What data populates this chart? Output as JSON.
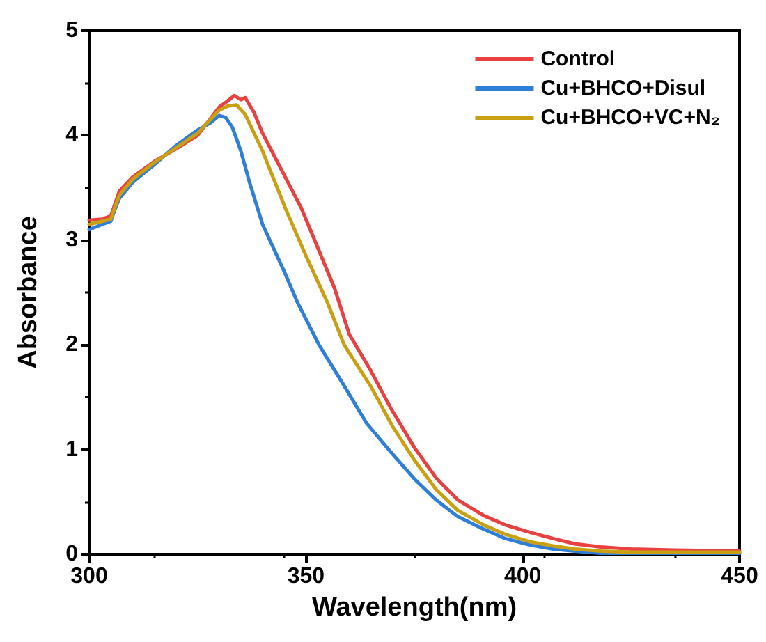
{
  "chart_data": {
    "type": "line",
    "xlabel": "Wavelength(nm)",
    "ylabel": "Absorbance",
    "xlim": [
      300,
      450
    ],
    "xticks": [
      300,
      350,
      400,
      450
    ],
    "ylim": [
      0,
      5
    ],
    "yticks": [
      0,
      1,
      2,
      3,
      4,
      5
    ],
    "grid": false,
    "legend": "top right",
    "marker": "none",
    "line_style": "solid",
    "series": [
      {
        "name": "Control",
        "color": "#e8413f",
        "x": [
          300,
          303,
          305,
          306,
          307,
          310,
          315,
          320,
          325,
          330,
          332,
          333.5,
          335,
          336,
          338,
          340,
          345,
          349,
          352,
          356.6,
          360,
          365,
          369.5,
          375,
          380,
          385,
          391,
          396,
          401.6,
          407,
          412,
          418,
          425,
          435,
          450
        ],
        "values": [
          3.19,
          3.2,
          3.23,
          3.35,
          3.47,
          3.6,
          3.75,
          3.87,
          4.0,
          4.27,
          4.33,
          4.38,
          4.34,
          4.36,
          4.22,
          4.02,
          3.62,
          3.3,
          3.0,
          2.54,
          2.1,
          1.75,
          1.4,
          1.02,
          0.73,
          0.52,
          0.37,
          0.28,
          0.21,
          0.15,
          0.1,
          0.07,
          0.05,
          0.04,
          0.03
        ]
      },
      {
        "name": "Cu+BHCO+Disul",
        "color": "#2f7ed8",
        "x": [
          300,
          303,
          305,
          306,
          307,
          310,
          315,
          320,
          325,
          328,
          330,
          331.5,
          333,
          335,
          337,
          340,
          345,
          348,
          353,
          358.8,
          364,
          369.5,
          375,
          380,
          385,
          391,
          396,
          401.6,
          407,
          412,
          418,
          425,
          435,
          450
        ],
        "values": [
          3.1,
          3.15,
          3.18,
          3.3,
          3.4,
          3.55,
          3.72,
          3.9,
          4.05,
          4.12,
          4.19,
          4.17,
          4.08,
          3.85,
          3.55,
          3.15,
          2.7,
          2.41,
          2.0,
          1.61,
          1.25,
          0.98,
          0.72,
          0.52,
          0.36,
          0.24,
          0.15,
          0.09,
          0.05,
          0.03,
          0.01,
          0.01,
          0.01,
          0.01
        ]
      },
      {
        "name": "Cu+BHCO+VC+N₂",
        "color": "#c9a012",
        "x": [
          300,
          303,
          305,
          306,
          307,
          310,
          315,
          320,
          325,
          330,
          332,
          334,
          336,
          340,
          345.3,
          350,
          355,
          358.8,
          365,
          370,
          375,
          380,
          385,
          391,
          396,
          401.6,
          407,
          412,
          418,
          425,
          435,
          450
        ],
        "values": [
          3.15,
          3.18,
          3.2,
          3.32,
          3.43,
          3.58,
          3.74,
          3.88,
          4.02,
          4.24,
          4.28,
          4.29,
          4.2,
          3.85,
          3.3,
          2.85,
          2.4,
          2.0,
          1.6,
          1.22,
          0.9,
          0.62,
          0.42,
          0.28,
          0.19,
          0.12,
          0.08,
          0.05,
          0.03,
          0.02,
          0.02,
          0.02
        ]
      }
    ]
  }
}
